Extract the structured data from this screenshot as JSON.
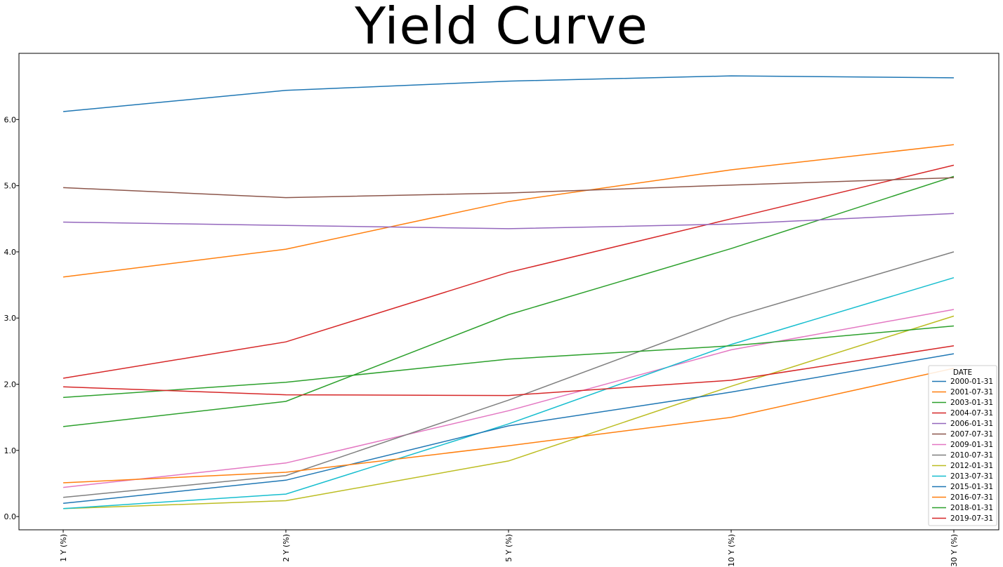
{
  "chart_data": {
    "type": "line",
    "title": "Yield Curve",
    "xlabel": "",
    "ylabel": "",
    "categories": [
      "1 Y (%)",
      "2 Y (%)",
      "5 Y (%)",
      "10 Y (%)",
      "30 Y (%)"
    ],
    "y_ticks": [
      "0.0",
      "1.0",
      "2.0",
      "3.0",
      "4.0",
      "5.0",
      "6.0"
    ],
    "ylim": [
      -0.2,
      7.0
    ],
    "grid": false,
    "legend": {
      "title": "DATE",
      "placement": "bottom-right"
    },
    "series": [
      {
        "name": "2000-01-31",
        "color": "#1f77b4",
        "values": [
          6.12,
          6.44,
          6.58,
          6.66,
          6.63
        ]
      },
      {
        "name": "2001-07-31",
        "color": "#ff7f0e",
        "values": [
          3.62,
          4.04,
          4.76,
          5.24,
          5.62
        ]
      },
      {
        "name": "2003-01-31",
        "color": "#2ca02c",
        "values": [
          1.36,
          1.74,
          3.05,
          4.05,
          5.14
        ]
      },
      {
        "name": "2004-07-31",
        "color": "#d62728",
        "values": [
          2.09,
          2.64,
          3.69,
          4.5,
          5.31
        ]
      },
      {
        "name": "2006-01-31",
        "color": "#9467bd",
        "values": [
          4.45,
          4.4,
          4.35,
          4.42,
          4.58
        ]
      },
      {
        "name": "2007-07-31",
        "color": "#8c564b",
        "values": [
          4.97,
          4.82,
          4.89,
          5.01,
          5.12
        ]
      },
      {
        "name": "2009-01-31",
        "color": "#e377c2",
        "values": [
          0.44,
          0.81,
          1.6,
          2.52,
          3.13
        ]
      },
      {
        "name": "2010-07-31",
        "color": "#7f7f7f",
        "values": [
          0.29,
          0.62,
          1.76,
          3.01,
          4.0
        ]
      },
      {
        "name": "2012-01-31",
        "color": "#bcbd22",
        "values": [
          0.12,
          0.24,
          0.84,
          1.97,
          3.03
        ]
      },
      {
        "name": "2013-07-31",
        "color": "#17becf",
        "values": [
          0.12,
          0.34,
          1.4,
          2.6,
          3.61
        ]
      },
      {
        "name": "2015-01-31",
        "color": "#1f77b4",
        "values": [
          0.2,
          0.55,
          1.37,
          1.88,
          2.46
        ]
      },
      {
        "name": "2016-07-31",
        "color": "#ff7f0e",
        "values": [
          0.51,
          0.67,
          1.07,
          1.5,
          2.24
        ]
      },
      {
        "name": "2018-01-31",
        "color": "#2ca02c",
        "values": [
          1.8,
          2.03,
          2.38,
          2.58,
          2.88
        ]
      },
      {
        "name": "2019-07-31",
        "color": "#d62728",
        "values": [
          1.96,
          1.84,
          1.83,
          2.06,
          2.58
        ]
      }
    ]
  }
}
